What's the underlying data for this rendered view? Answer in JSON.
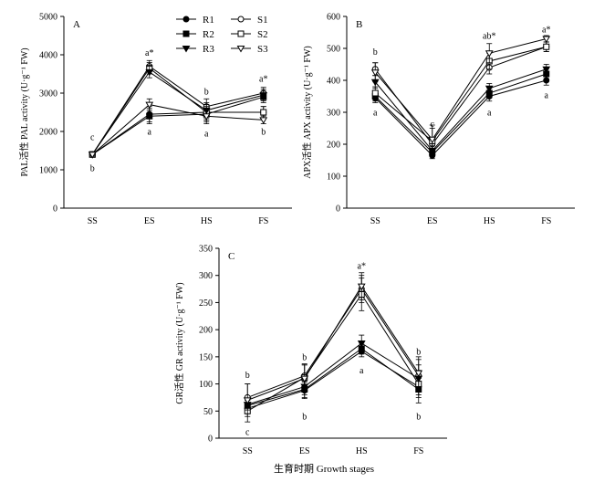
{
  "figure": {
    "xlabel": "生育时期 Growth stages",
    "legend": {
      "entries": [
        {
          "name": "R1",
          "marker": "circle-filled"
        },
        {
          "name": "S1",
          "marker": "circle-open"
        },
        {
          "name": "R2",
          "marker": "square-filled"
        },
        {
          "name": "S2",
          "marker": "square-open"
        },
        {
          "name": "R3",
          "marker": "triangle-filled"
        },
        {
          "name": "S3",
          "marker": "triangle-open"
        }
      ]
    }
  },
  "chart_data": [
    {
      "type": "line",
      "panel_label": "A",
      "ylabel": "PAL活性 PAL activity (U·g⁻¹ FW)",
      "categories": [
        "SS",
        "ES",
        "HS",
        "FS"
      ],
      "ylim": [
        0,
        5000
      ],
      "yticks": [
        "0",
        "1000",
        "2000",
        "3000",
        "4000",
        "5000"
      ],
      "series": [
        {
          "name": "R1",
          "values": [
            1400,
            2450,
            2500,
            2500
          ],
          "errors": [
            40,
            200,
            200,
            150
          ]
        },
        {
          "name": "S1",
          "values": [
            1400,
            3700,
            2650,
            3000
          ],
          "errors": [
            40,
            150,
            200,
            150
          ]
        },
        {
          "name": "R2",
          "values": [
            1400,
            2400,
            2450,
            2900
          ],
          "errors": [
            40,
            200,
            200,
            150
          ]
        },
        {
          "name": "S2",
          "values": [
            1400,
            3650,
            2500,
            2500
          ],
          "errors": [
            40,
            150,
            200,
            150
          ]
        },
        {
          "name": "R3",
          "values": [
            1400,
            3550,
            2550,
            2950
          ],
          "errors": [
            40,
            150,
            200,
            150
          ]
        },
        {
          "name": "S3",
          "values": [
            1400,
            2700,
            2400,
            2300
          ],
          "errors": [
            40,
            150,
            200,
            100
          ]
        }
      ],
      "annotations": [
        {
          "category": "SS",
          "text": "c",
          "value": 1860
        },
        {
          "category": "SS",
          "text": "b",
          "value": 1050
        },
        {
          "category": "ES",
          "text": "a*",
          "value": 4060
        },
        {
          "category": "ES",
          "text": "a",
          "value": 2000
        },
        {
          "category": "HS",
          "text": "b",
          "value": 3050
        },
        {
          "category": "HS",
          "text": "a",
          "value": 1950
        },
        {
          "category": "FS",
          "text": "a*",
          "value": 3380
        },
        {
          "category": "FS",
          "text": "b",
          "value": 2000
        }
      ]
    },
    {
      "type": "line",
      "panel_label": "B",
      "ylabel": "APX活性 APX activity (U·g⁻¹ FW)",
      "categories": [
        "SS",
        "ES",
        "HS",
        "FS"
      ],
      "ylim": [
        0,
        600
      ],
      "yticks": [
        "0",
        "100",
        "200",
        "300",
        "400",
        "500",
        "600"
      ],
      "series": [
        {
          "name": "R1",
          "values": [
            345,
            165,
            350,
            400
          ],
          "errors": [
            15,
            10,
            15,
            15
          ]
        },
        {
          "name": "S1",
          "values": [
            435,
            200,
            440,
            505
          ],
          "errors": [
            20,
            20,
            20,
            15
          ]
        },
        {
          "name": "R2",
          "values": [
            350,
            175,
            360,
            420
          ],
          "errors": [
            15,
            10,
            15,
            15
          ]
        },
        {
          "name": "S2",
          "values": [
            360,
            210,
            460,
            505
          ],
          "errors": [
            20,
            40,
            25,
            15
          ]
        },
        {
          "name": "R3",
          "values": [
            395,
            180,
            375,
            435
          ],
          "errors": [
            20,
            15,
            15,
            15
          ]
        },
        {
          "name": "S3",
          "values": [
            425,
            215,
            485,
            530
          ],
          "errors": [
            30,
            45,
            30,
            10
          ]
        }
      ],
      "annotations": [
        {
          "category": "SS",
          "text": "b",
          "value": 490
        },
        {
          "category": "SS",
          "text": "a",
          "value": 300
        },
        {
          "category": "ES",
          "text": "c",
          "value": 265
        },
        {
          "category": "HS",
          "text": "ab*",
          "value": 540
        },
        {
          "category": "HS",
          "text": "a",
          "value": 300
        },
        {
          "category": "FS",
          "text": "a*",
          "value": 560
        },
        {
          "category": "FS",
          "text": "a",
          "value": 355
        }
      ]
    },
    {
      "type": "line",
      "panel_label": "C",
      "ylabel": "GR活性 GR activity (U·g⁻¹ FW)",
      "categories": [
        "SS",
        "ES",
        "HS",
        "FS"
      ],
      "ylim": [
        0,
        350
      ],
      "yticks": [
        "0",
        "50",
        "100",
        "150",
        "200",
        "250",
        "300",
        "350"
      ],
      "series": [
        {
          "name": "R1",
          "values": [
            55,
            88,
            160,
            95
          ],
          "errors": [
            10,
            15,
            10,
            15
          ]
        },
        {
          "name": "S1",
          "values": [
            75,
            115,
            275,
            115
          ],
          "errors": [
            25,
            20,
            25,
            30
          ]
        },
        {
          "name": "R2",
          "values": [
            60,
            90,
            165,
            90
          ],
          "errors": [
            10,
            15,
            10,
            15
          ]
        },
        {
          "name": "S2",
          "values": [
            50,
            112,
            265,
            100
          ],
          "errors": [
            20,
            25,
            30,
            35
          ]
        },
        {
          "name": "R3",
          "values": [
            62,
            95,
            175,
            110
          ],
          "errors": [
            10,
            15,
            15,
            15
          ]
        },
        {
          "name": "S3",
          "values": [
            70,
            110,
            280,
            120
          ],
          "errors": [
            30,
            25,
            25,
            30
          ]
        }
      ],
      "annotations": [
        {
          "category": "SS",
          "text": "b",
          "value": 117
        },
        {
          "category": "SS",
          "text": "c",
          "value": 12
        },
        {
          "category": "ES",
          "text": "b",
          "value": 150
        },
        {
          "category": "ES",
          "text": "b",
          "value": 40
        },
        {
          "category": "HS",
          "text": "a*",
          "value": 318
        },
        {
          "category": "HS",
          "text": "a",
          "value": 125
        },
        {
          "category": "FS",
          "text": "b",
          "value": 160
        },
        {
          "category": "FS",
          "text": "b",
          "value": 40
        }
      ]
    }
  ]
}
